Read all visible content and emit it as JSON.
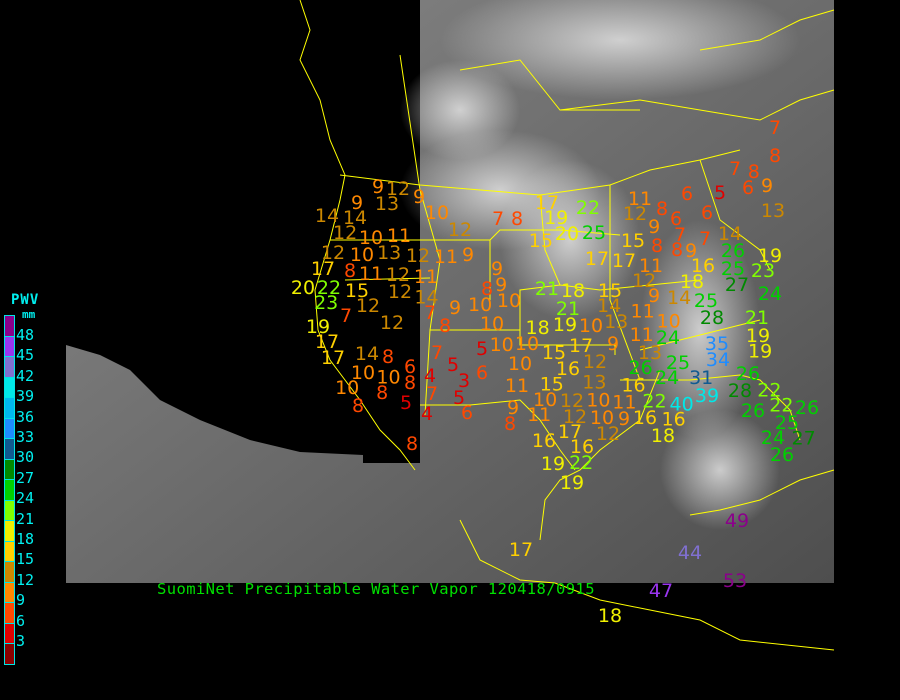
{
  "caption": "SuomiNet Precipitable Water Vapor 120418/0915",
  "legend": {
    "title": "PWV",
    "units": "mm",
    "labels": [
      "48",
      "45",
      "42",
      "39",
      "36",
      "33",
      "30",
      "27",
      "24",
      "21",
      "18",
      "15",
      "12",
      "9",
      "6",
      "3"
    ],
    "colors": [
      "#8b008b",
      "#9a35f0",
      "#8070d0",
      "#00e8e8",
      "#00b8ee",
      "#1e8cff",
      "#105a90",
      "#008a00",
      "#00d000",
      "#80ff00",
      "#f0f000",
      "#ffd000",
      "#cc8800",
      "#ff8800",
      "#ff4800",
      "#e00000",
      "#8b0000"
    ],
    "thresholds": [
      48,
      45,
      42,
      39,
      36,
      33,
      30,
      27,
      24,
      21,
      18,
      15,
      12,
      9,
      6,
      3,
      0
    ]
  },
  "map": {
    "background": "#000000",
    "boundary_color": "#ffff00"
  },
  "stations": [
    9,
    12,
    9,
    9,
    13,
    14,
    14,
    10,
    12,
    7,
    8,
    12,
    10,
    11,
    10,
    13,
    12,
    12,
    11,
    9,
    17,
    8,
    11,
    12,
    11,
    9,
    20,
    22,
    15,
    12,
    12,
    14,
    23,
    8,
    9,
    10,
    10,
    7,
    9,
    7,
    12,
    19,
    8,
    10,
    17,
    17,
    14,
    8,
    7,
    5,
    10,
    10,
    6,
    5,
    4,
    3,
    6,
    10,
    8,
    8,
    7,
    5,
    8,
    5,
    4,
    6,
    9,
    8,
    8,
    10,
    10,
    10,
    11,
    15,
    17,
    12,
    9,
    16,
    15,
    13,
    12,
    10,
    10,
    11,
    12,
    10,
    9,
    12,
    17,
    16,
    16,
    19,
    22,
    19,
    13,
    24,
    25,
    24,
    31,
    35,
    34,
    39,
    40,
    22,
    16,
    16,
    16,
    18,
    26,
    28,
    22,
    22,
    26,
    25,
    26,
    24,
    27,
    26,
    19,
    17,
    19,
    22,
    20,
    25,
    15,
    11,
    12,
    8,
    9,
    6,
    7,
    6,
    5,
    6,
    6,
    9,
    13,
    15,
    8,
    8,
    9,
    7,
    14,
    26,
    17,
    17,
    11,
    16,
    12,
    18,
    25,
    27,
    23,
    19,
    24,
    21,
    18,
    15,
    9,
    14,
    25,
    14,
    11,
    21,
    19,
    13,
    11,
    10,
    28,
    21,
    26,
    10,
    11,
    18,
    19,
    7,
    8,
    7,
    8,
    17,
    49,
    44,
    47,
    53,
    18
  ]
}
